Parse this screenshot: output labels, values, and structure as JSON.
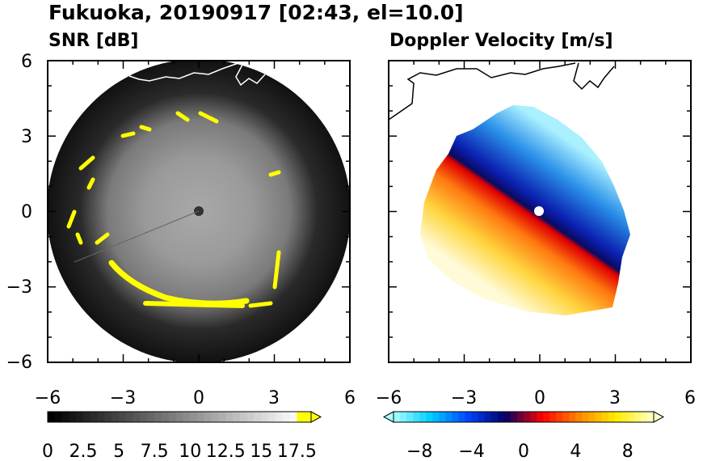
{
  "figure": {
    "title": "Fukuoka, 20190917 [02:43, el=10.0]"
  },
  "chart_data": [
    {
      "type": "heatmap",
      "title": "SNR [dB]",
      "xlim": [
        -6,
        6
      ],
      "ylim": [
        -6,
        6
      ],
      "x_ticks": [
        "−6",
        "−3",
        "0",
        "3",
        "6"
      ],
      "y_ticks": [
        "6",
        "3",
        "0",
        "−3",
        "−6"
      ],
      "colorbar": {
        "min": 0,
        "max": 18.5,
        "extend": "max",
        "colors": [
          "#000000",
          "#ffffff",
          "#ffff00"
        ],
        "ticks": [
          "0",
          "2.5",
          "5",
          "7.5",
          "10",
          "12.5",
          "15",
          "17.5"
        ]
      }
    },
    {
      "type": "heatmap",
      "title": "Doppler Velocity [m/s]",
      "xlim": [
        -6,
        6
      ],
      "ylim": [
        -6,
        6
      ],
      "x_ticks": [
        "−6",
        "−3",
        "0",
        "3",
        "6"
      ],
      "y_ticks": [],
      "colorbar": {
        "min": -10,
        "max": 10,
        "extend": "both",
        "colors": [
          "#aaffff",
          "#00ccff",
          "#0044ff",
          "#000066",
          "#ff0000",
          "#ff8800",
          "#ffee00",
          "#ffffcc"
        ],
        "ticks": [
          "−8",
          "−4",
          "0",
          "4",
          "8"
        ]
      }
    }
  ]
}
